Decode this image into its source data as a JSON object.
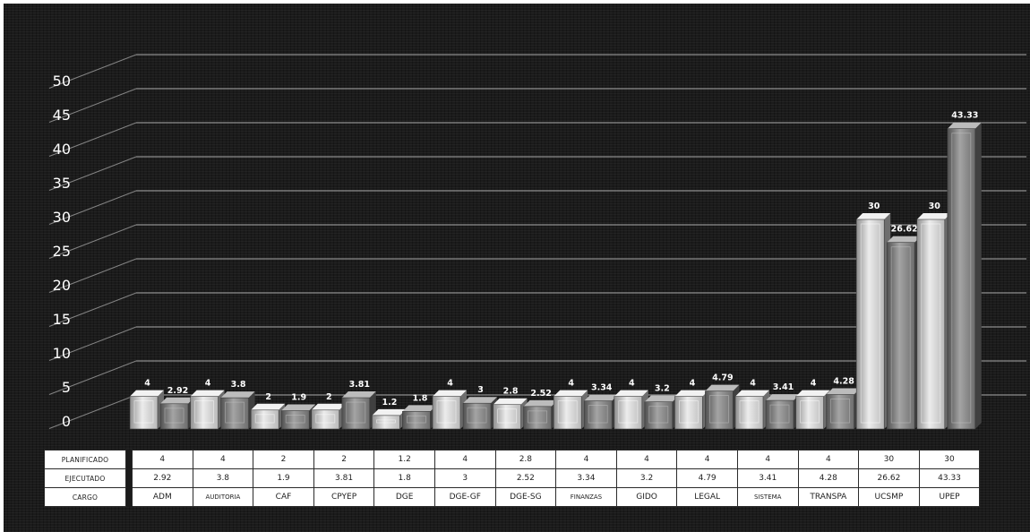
{
  "chart_data": {
    "type": "bar",
    "categories": [
      "ADM",
      "AUDITORIA",
      "CAF",
      "CPYEP",
      "DGE",
      "DGE-GF",
      "DGE-SG",
      "FINANZAS",
      "GIDO",
      "LEGAL",
      "SISTEMA",
      "TRANSPA",
      "UCSMP",
      "UPEP"
    ],
    "series": [
      {
        "name": "PLANIFICADO",
        "values": [
          4,
          4,
          2,
          2,
          1.2,
          4,
          2.8,
          4,
          4,
          4,
          4,
          4,
          30,
          30
        ]
      },
      {
        "name": "EJECUTADO",
        "values": [
          2.92,
          3.8,
          1.9,
          3.81,
          1.8,
          3,
          2.52,
          3.34,
          3.2,
          4.79,
          3.41,
          4.28,
          26.62,
          43.33
        ]
      }
    ],
    "value_labels": {
      "PLANIFICADO": [
        "4",
        "4",
        "2",
        "2",
        "1.2",
        "4",
        "2.8",
        "4",
        "4",
        "4",
        "4",
        "4",
        "30",
        "30"
      ],
      "EJECUTADO": [
        "2.92",
        "3.8",
        "1.9",
        "3.81",
        "1.8",
        "3",
        "2.52",
        "3.34",
        "3.2",
        "4.79",
        "3.41",
        "4.28",
        "26.62",
        "43.33"
      ]
    },
    "yticks": [
      "0",
      "5",
      "10",
      "15",
      "20",
      "25",
      "30",
      "35",
      "40",
      "45",
      "50"
    ],
    "ylim": [
      0,
      50
    ],
    "grid": true,
    "style": "3d-bar",
    "table_row_labels": [
      "PLANIFICADO",
      "EJECUTADO",
      "CARGO"
    ],
    "category_label": "CARGO",
    "colors": {
      "background": "#1b1b1b",
      "gridline": "#d8d8d8",
      "planificado": "#c9c9c9",
      "ejecutado": "#8a8a8a",
      "text": "#ffffff"
    }
  }
}
